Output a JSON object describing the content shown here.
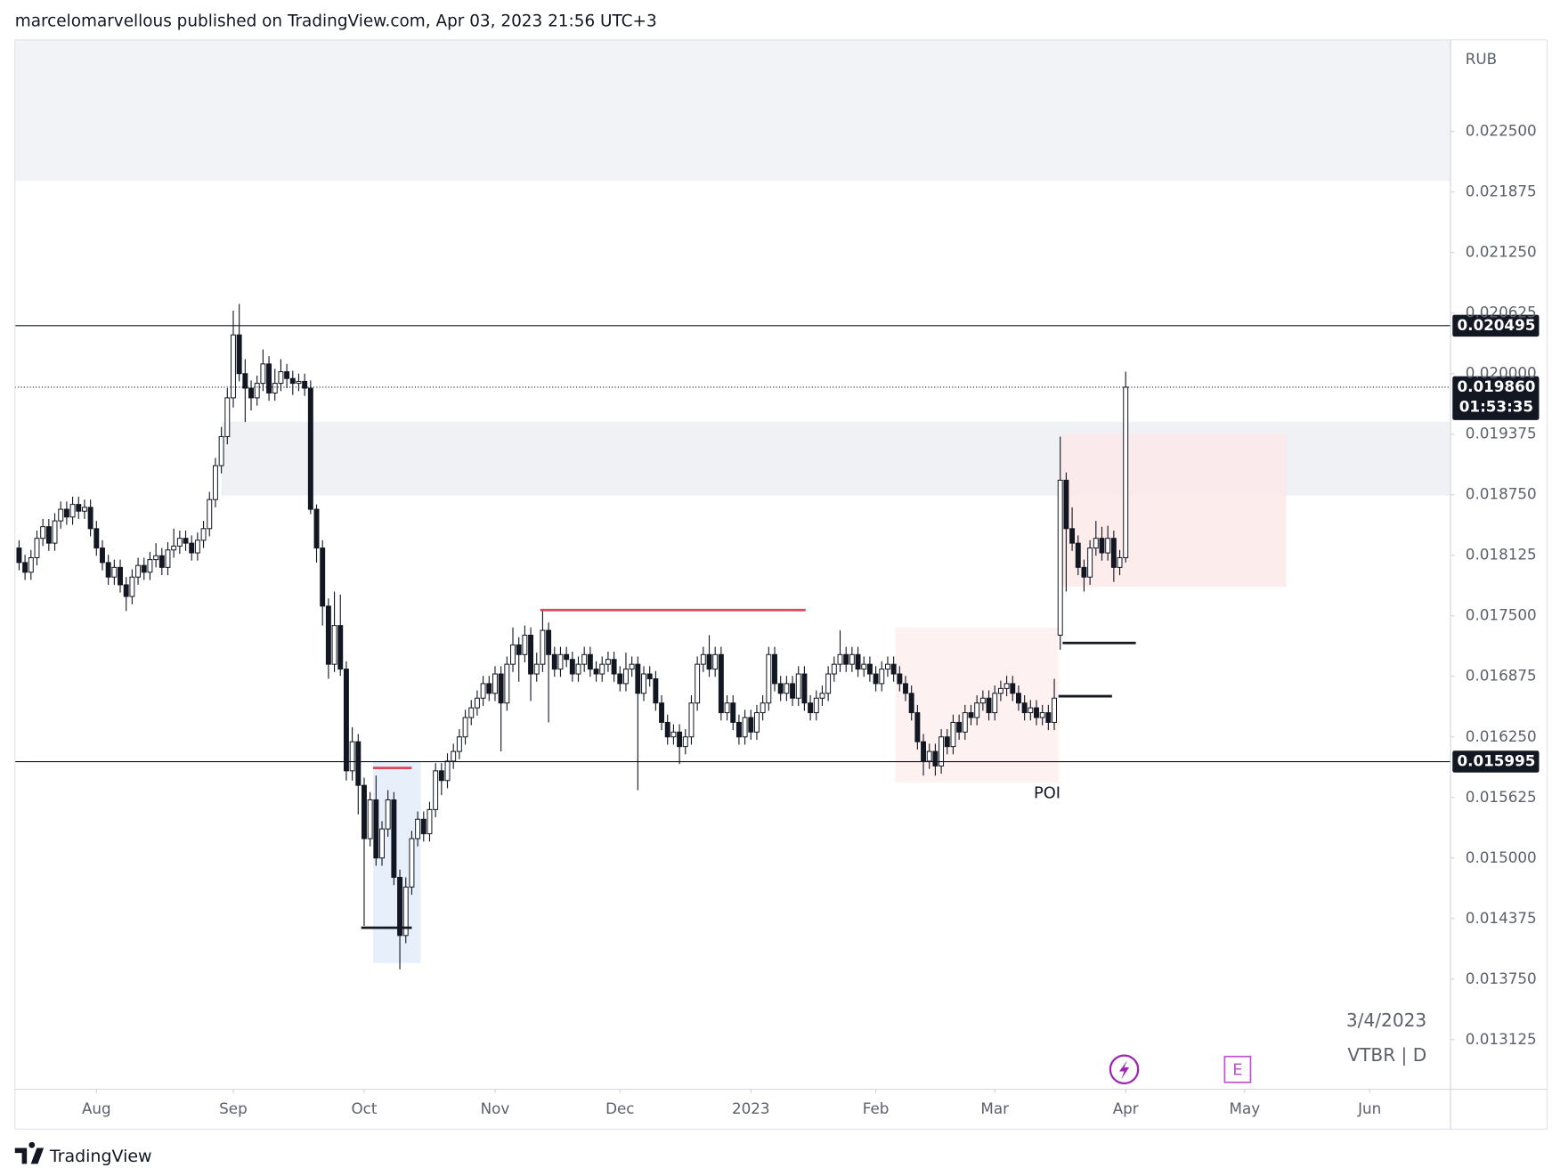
{
  "header": "marcelomarvellous published on TradingView.com, Apr 03, 2023 21:56 UTC+3",
  "footer": "TradingView",
  "chart_data": {
    "type": "candlestick",
    "currency": "RUB",
    "date_label": "3/4/2023",
    "symbol": "VTBR | D",
    "up_color": "#ffffff",
    "down_color": "#131722",
    "edge_color": "#131722",
    "xlim": [
      -0.7,
      240.6
    ],
    "ylim": [
      0.012612,
      0.023445
    ],
    "xticks": [
      {
        "value": 13,
        "label": "Aug"
      },
      {
        "value": 36,
        "label": "Sep"
      },
      {
        "value": 58,
        "label": "Oct"
      },
      {
        "value": 80,
        "label": "Nov"
      },
      {
        "value": 101,
        "label": "Dec"
      },
      {
        "value": 123,
        "label": "2023"
      },
      {
        "value": 144,
        "label": "Feb"
      },
      {
        "value": 164,
        "label": "Mar"
      },
      {
        "value": 186,
        "label": "Apr"
      },
      {
        "value": 206,
        "label": "May"
      },
      {
        "value": 227,
        "label": "Jun"
      }
    ],
    "yticks": [
      {
        "value": 0.013125,
        "label": "0.013125"
      },
      {
        "value": 0.01375,
        "label": "0.013750"
      },
      {
        "value": 0.014375,
        "label": "0.014375"
      },
      {
        "value": 0.015,
        "label": "0.015000"
      },
      {
        "value": 0.015625,
        "label": "0.015625"
      },
      {
        "value": 0.01625,
        "label": "0.016250"
      },
      {
        "value": 0.016875,
        "label": "0.016875"
      },
      {
        "value": 0.0175,
        "label": "0.017500"
      },
      {
        "value": 0.018125,
        "label": "0.018125"
      },
      {
        "value": 0.01875,
        "label": "0.018750"
      },
      {
        "value": 0.019375,
        "label": "0.019375"
      },
      {
        "value": 0.02,
        "label": "0.020000"
      },
      {
        "value": 0.020625,
        "label": "0.020625"
      },
      {
        "value": 0.02125,
        "label": "0.021250"
      },
      {
        "value": 0.021875,
        "label": "0.021875"
      },
      {
        "value": 0.0225,
        "label": "0.022500"
      }
    ],
    "ohlc": [
      [
        0.0182,
        0.01828,
        0.01797,
        0.01805
      ],
      [
        0.01805,
        0.01813,
        0.01787,
        0.01795
      ],
      [
        0.01795,
        0.01818,
        0.01787,
        0.0181
      ],
      [
        0.0181,
        0.01838,
        0.01802,
        0.0183
      ],
      [
        0.0183,
        0.0185,
        0.01822,
        0.01842
      ],
      [
        0.01842,
        0.0185,
        0.01817,
        0.01825
      ],
      [
        0.01825,
        0.01856,
        0.01817,
        0.01848
      ],
      [
        0.01848,
        0.01868,
        0.0184,
        0.0186
      ],
      [
        0.0186,
        0.01868,
        0.01844,
        0.01852
      ],
      [
        0.01852,
        0.01873,
        0.01844,
        0.01865
      ],
      [
        0.01865,
        0.01873,
        0.0185,
        0.01858
      ],
      [
        0.01858,
        0.0187,
        0.0185,
        0.01862
      ],
      [
        0.01862,
        0.0187,
        0.01832,
        0.0184
      ],
      [
        0.0184,
        0.01848,
        0.01812,
        0.0182
      ],
      [
        0.0182,
        0.01828,
        0.01797,
        0.01805
      ],
      [
        0.01805,
        0.01813,
        0.01782,
        0.0179
      ],
      [
        0.0179,
        0.01808,
        0.01782,
        0.018
      ],
      [
        0.018,
        0.01808,
        0.01774,
        0.01782
      ],
      [
        0.01782,
        0.0179,
        0.01755,
        0.0177
      ],
      [
        0.0177,
        0.01798,
        0.01762,
        0.0179
      ],
      [
        0.0179,
        0.0181,
        0.01782,
        0.01802
      ],
      [
        0.01802,
        0.0181,
        0.01787,
        0.01795
      ],
      [
        0.01795,
        0.01816,
        0.01787,
        0.01808
      ],
      [
        0.01808,
        0.01825,
        0.018,
        0.01812
      ],
      [
        0.01812,
        0.0182,
        0.01792,
        0.018
      ],
      [
        0.018,
        0.01826,
        0.01792,
        0.01818
      ],
      [
        0.01818,
        0.0184,
        0.0181,
        0.01822
      ],
      [
        0.01822,
        0.01838,
        0.01814,
        0.0183
      ],
      [
        0.0183,
        0.01838,
        0.01817,
        0.01825
      ],
      [
        0.01825,
        0.01833,
        0.01807,
        0.01815
      ],
      [
        0.01815,
        0.01836,
        0.01807,
        0.01828
      ],
      [
        0.01828,
        0.01848,
        0.0182,
        0.0184
      ],
      [
        0.0184,
        0.01878,
        0.01832,
        0.0187
      ],
      [
        0.0187,
        0.01913,
        0.01862,
        0.01905
      ],
      [
        0.01905,
        0.01945,
        0.01897,
        0.01935
      ],
      [
        0.01935,
        0.01985,
        0.01927,
        0.01975
      ],
      [
        0.01975,
        0.02065,
        0.01965,
        0.0204
      ],
      [
        0.0204,
        0.02072,
        0.01992,
        0.02
      ],
      [
        0.02,
        0.02015,
        0.0195,
        0.01985
      ],
      [
        0.01985,
        0.01993,
        0.01962,
        0.01975
      ],
      [
        0.01975,
        0.01998,
        0.01967,
        0.0199
      ],
      [
        0.0199,
        0.02025,
        0.01982,
        0.0201
      ],
      [
        0.0201,
        0.02018,
        0.01972,
        0.0198
      ],
      [
        0.0198,
        0.02005,
        0.01972,
        0.0199
      ],
      [
        0.0199,
        0.02015,
        0.01982,
        0.02002
      ],
      [
        0.02002,
        0.0201,
        0.01985,
        0.01995
      ],
      [
        0.01995,
        0.02003,
        0.01978,
        0.0199
      ],
      [
        0.0199,
        0.02,
        0.01982,
        0.01992
      ],
      [
        0.01992,
        0.02,
        0.01977,
        0.01985
      ],
      [
        0.01985,
        0.01993,
        0.01855,
        0.0186
      ],
      [
        0.0186,
        0.01865,
        0.01805,
        0.0182
      ],
      [
        0.0182,
        0.01828,
        0.0174,
        0.0176
      ],
      [
        0.0176,
        0.01768,
        0.01685,
        0.017
      ],
      [
        0.017,
        0.01775,
        0.01692,
        0.0174
      ],
      [
        0.0174,
        0.01772,
        0.01688,
        0.01695
      ],
      [
        0.01695,
        0.01703,
        0.0158,
        0.0159
      ],
      [
        0.0159,
        0.01635,
        0.0158,
        0.0162
      ],
      [
        0.0162,
        0.01628,
        0.01545,
        0.01575
      ],
      [
        0.01575,
        0.01583,
        0.0143,
        0.0152
      ],
      [
        0.0152,
        0.01568,
        0.01512,
        0.0156
      ],
      [
        0.0156,
        0.01585,
        0.01492,
        0.015
      ],
      [
        0.015,
        0.01538,
        0.01492,
        0.0153
      ],
      [
        0.0153,
        0.0157,
        0.01522,
        0.0156
      ],
      [
        0.0156,
        0.01568,
        0.01472,
        0.0148
      ],
      [
        0.0148,
        0.01488,
        0.01385,
        0.0142
      ],
      [
        0.0142,
        0.0148,
        0.01412,
        0.0147
      ],
      [
        0.0147,
        0.01528,
        0.01462,
        0.0152
      ],
      [
        0.0152,
        0.01548,
        0.01512,
        0.0154
      ],
      [
        0.0154,
        0.01548,
        0.01517,
        0.01525
      ],
      [
        0.01525,
        0.01558,
        0.01517,
        0.0155
      ],
      [
        0.0155,
        0.01598,
        0.01542,
        0.0159
      ],
      [
        0.0159,
        0.01598,
        0.01565,
        0.0158
      ],
      [
        0.0158,
        0.01608,
        0.01572,
        0.016
      ],
      [
        0.016,
        0.01618,
        0.01592,
        0.0161
      ],
      [
        0.0161,
        0.01633,
        0.01602,
        0.01625
      ],
      [
        0.01625,
        0.01653,
        0.01617,
        0.01645
      ],
      [
        0.01645,
        0.01663,
        0.01637,
        0.01655
      ],
      [
        0.01655,
        0.01673,
        0.01647,
        0.01665
      ],
      [
        0.01665,
        0.01688,
        0.01657,
        0.0168
      ],
      [
        0.0168,
        0.01688,
        0.01662,
        0.0167
      ],
      [
        0.0167,
        0.01698,
        0.01662,
        0.0169
      ],
      [
        0.0169,
        0.01698,
        0.0161,
        0.0166
      ],
      [
        0.0166,
        0.01708,
        0.01652,
        0.017
      ],
      [
        0.017,
        0.01738,
        0.01692,
        0.0172
      ],
      [
        0.0172,
        0.01728,
        0.01682,
        0.0171
      ],
      [
        0.0171,
        0.0174,
        0.01702,
        0.0173
      ],
      [
        0.0173,
        0.01738,
        0.01662,
        0.0169
      ],
      [
        0.0169,
        0.01712,
        0.01682,
        0.017
      ],
      [
        0.017,
        0.01755,
        0.01692,
        0.01735
      ],
      [
        0.01735,
        0.01743,
        0.0164,
        0.0171
      ],
      [
        0.0171,
        0.01718,
        0.01687,
        0.01695
      ],
      [
        0.01695,
        0.01718,
        0.01687,
        0.0171
      ],
      [
        0.0171,
        0.01718,
        0.01697,
        0.01705
      ],
      [
        0.01705,
        0.01713,
        0.01682,
        0.0169
      ],
      [
        0.0169,
        0.01708,
        0.01682,
        0.017
      ],
      [
        0.017,
        0.01718,
        0.01692,
        0.0171
      ],
      [
        0.0171,
        0.01718,
        0.01687,
        0.01695
      ],
      [
        0.01695,
        0.01703,
        0.01682,
        0.0169
      ],
      [
        0.0169,
        0.01708,
        0.01682,
        0.017
      ],
      [
        0.017,
        0.01713,
        0.01692,
        0.01705
      ],
      [
        0.01705,
        0.01713,
        0.01682,
        0.0169
      ],
      [
        0.0169,
        0.01698,
        0.01672,
        0.0168
      ],
      [
        0.0168,
        0.01712,
        0.01672,
        0.01695
      ],
      [
        0.01695,
        0.01708,
        0.01687,
        0.017
      ],
      [
        0.017,
        0.01708,
        0.0157,
        0.0167
      ],
      [
        0.0167,
        0.01698,
        0.01662,
        0.0169
      ],
      [
        0.0169,
        0.01698,
        0.01677,
        0.01685
      ],
      [
        0.01685,
        0.01693,
        0.01652,
        0.0166
      ],
      [
        0.0166,
        0.01668,
        0.01632,
        0.0164
      ],
      [
        0.0164,
        0.01648,
        0.01617,
        0.01625
      ],
      [
        0.01625,
        0.01638,
        0.01617,
        0.0163
      ],
      [
        0.0163,
        0.01638,
        0.01597,
        0.01615
      ],
      [
        0.01615,
        0.01633,
        0.01607,
        0.01625
      ],
      [
        0.01625,
        0.01668,
        0.01617,
        0.0166
      ],
      [
        0.0166,
        0.01708,
        0.01652,
        0.017
      ],
      [
        0.017,
        0.01718,
        0.01692,
        0.0171
      ],
      [
        0.0171,
        0.0173,
        0.01687,
        0.01695
      ],
      [
        0.01695,
        0.01718,
        0.01687,
        0.0171
      ],
      [
        0.0171,
        0.01718,
        0.01642,
        0.0165
      ],
      [
        0.0165,
        0.01668,
        0.01642,
        0.0166
      ],
      [
        0.0166,
        0.01668,
        0.01632,
        0.0164
      ],
      [
        0.0164,
        0.01648,
        0.01617,
        0.01625
      ],
      [
        0.01625,
        0.01653,
        0.01617,
        0.01645
      ],
      [
        0.01645,
        0.01653,
        0.01622,
        0.0163
      ],
      [
        0.0163,
        0.01658,
        0.01622,
        0.0165
      ],
      [
        0.0165,
        0.01668,
        0.01642,
        0.0166
      ],
      [
        0.0166,
        0.01718,
        0.01652,
        0.0171
      ],
      [
        0.0171,
        0.01718,
        0.01672,
        0.0168
      ],
      [
        0.0168,
        0.01688,
        0.01662,
        0.0167
      ],
      [
        0.0167,
        0.01688,
        0.01662,
        0.0168
      ],
      [
        0.0168,
        0.01688,
        0.01657,
        0.01665
      ],
      [
        0.01665,
        0.01698,
        0.01657,
        0.0169
      ],
      [
        0.0169,
        0.01698,
        0.01652,
        0.0166
      ],
      [
        0.0166,
        0.01668,
        0.01642,
        0.0165
      ],
      [
        0.0165,
        0.01673,
        0.01642,
        0.01665
      ],
      [
        0.01665,
        0.01678,
        0.01657,
        0.0167
      ],
      [
        0.0167,
        0.01698,
        0.01662,
        0.0169
      ],
      [
        0.0169,
        0.01708,
        0.01682,
        0.017
      ],
      [
        0.017,
        0.01735,
        0.01692,
        0.0171
      ],
      [
        0.0171,
        0.01718,
        0.01692,
        0.017
      ],
      [
        0.017,
        0.01718,
        0.01692,
        0.0171
      ],
      [
        0.0171,
        0.01718,
        0.01687,
        0.01695
      ],
      [
        0.01695,
        0.01708,
        0.01687,
        0.017
      ],
      [
        0.017,
        0.01708,
        0.01682,
        0.0169
      ],
      [
        0.0169,
        0.01698,
        0.01672,
        0.0168
      ],
      [
        0.0168,
        0.01703,
        0.01672,
        0.01695
      ],
      [
        0.01695,
        0.01708,
        0.01687,
        0.017
      ],
      [
        0.017,
        0.01708,
        0.01682,
        0.0169
      ],
      [
        0.0169,
        0.01698,
        0.01672,
        0.0168
      ],
      [
        0.0168,
        0.01688,
        0.01662,
        0.0167
      ],
      [
        0.0167,
        0.01678,
        0.01642,
        0.0165
      ],
      [
        0.0165,
        0.01658,
        0.01612,
        0.0162
      ],
      [
        0.0162,
        0.01628,
        0.01585,
        0.016
      ],
      [
        0.016,
        0.01618,
        0.01592,
        0.0161
      ],
      [
        0.0161,
        0.01618,
        0.01585,
        0.01595
      ],
      [
        0.01595,
        0.01633,
        0.01587,
        0.01625
      ],
      [
        0.01625,
        0.01633,
        0.01607,
        0.01615
      ],
      [
        0.01615,
        0.01648,
        0.01607,
        0.0164
      ],
      [
        0.0164,
        0.01648,
        0.01622,
        0.0163
      ],
      [
        0.0163,
        0.01658,
        0.01622,
        0.0165
      ],
      [
        0.0165,
        0.01658,
        0.01637,
        0.01645
      ],
      [
        0.01645,
        0.01668,
        0.01637,
        0.0166
      ],
      [
        0.0166,
        0.01673,
        0.01652,
        0.01665
      ],
      [
        0.01665,
        0.01673,
        0.01642,
        0.0165
      ],
      [
        0.0165,
        0.01678,
        0.01642,
        0.0167
      ],
      [
        0.0167,
        0.01683,
        0.01662,
        0.01675
      ],
      [
        0.01675,
        0.01688,
        0.01667,
        0.0168
      ],
      [
        0.0168,
        0.01688,
        0.01662,
        0.0167
      ],
      [
        0.0167,
        0.01678,
        0.01652,
        0.0166
      ],
      [
        0.0166,
        0.01668,
        0.01642,
        0.0165
      ],
      [
        0.0165,
        0.01663,
        0.01642,
        0.01655
      ],
      [
        0.01655,
        0.01663,
        0.01637,
        0.01645
      ],
      [
        0.01645,
        0.01658,
        0.01637,
        0.0165
      ],
      [
        0.0165,
        0.01658,
        0.01632,
        0.0164
      ],
      [
        0.0164,
        0.01685,
        0.01632,
        0.01665
      ],
      [
        0.0173,
        0.01935,
        0.01715,
        0.0189
      ],
      [
        0.0189,
        0.01898,
        0.01775,
        0.0184
      ],
      [
        0.0184,
        0.01862,
        0.01817,
        0.01825
      ],
      [
        0.01825,
        0.01833,
        0.01792,
        0.018
      ],
      [
        0.018,
        0.01808,
        0.01775,
        0.0179
      ],
      [
        0.0179,
        0.01828,
        0.01782,
        0.0182
      ],
      [
        0.0182,
        0.01848,
        0.01812,
        0.0183
      ],
      [
        0.0183,
        0.01842,
        0.01807,
        0.01815
      ],
      [
        0.01815,
        0.01843,
        0.01807,
        0.0183
      ],
      [
        0.0183,
        0.01838,
        0.01785,
        0.018
      ],
      [
        0.018,
        0.01818,
        0.01792,
        0.0181
      ],
      [
        0.0181,
        0.02002,
        0.01805,
        0.01986
      ]
    ],
    "zones": [
      {
        "x": [
          null,
          null
        ],
        "y": [
          0.02199,
          null
        ],
        "color": "#f0f1f5"
      },
      {
        "x": [
          34,
          null
        ],
        "y": [
          0.01874,
          0.019504
        ],
        "color": "#eceef3"
      },
      {
        "x": [
          147.3,
          174.7
        ],
        "y": [
          0.01578,
          0.01738
        ],
        "color": "#fdeeee"
      },
      {
        "x": [
          175,
          213
        ],
        "y": [
          0.0178,
          0.01938
        ],
        "color": "#fce9e9"
      },
      {
        "x": [
          59.5,
          67.5
        ],
        "y": [
          0.013916,
          0.016
        ],
        "color": "#e3ecf9"
      }
    ],
    "segments": [
      {
        "x": [
          87.6,
          132.2
        ],
        "y": 0.01756,
        "color": "#e0465a"
      },
      {
        "x": [
          59.5,
          66
        ],
        "y": 0.01593,
        "color": "#e0465a"
      },
      {
        "x": [
          57.5,
          66
        ],
        "y": 0.01428,
        "color": "#131722"
      },
      {
        "x": [
          175.4,
          187.7
        ],
        "y": 0.01722,
        "color": "#131722"
      },
      {
        "x": [
          174.7,
          183.7
        ],
        "y": 0.01667,
        "color": "#131722"
      }
    ],
    "levels": [
      {
        "value": 0.020495,
        "label": "0.020495"
      },
      {
        "value": 0.015995,
        "label": "0.015995"
      }
    ],
    "last_price": {
      "value": 0.01986,
      "label": "0.019860"
    },
    "countdown": "01:53:35",
    "poi": {
      "x": 172.8,
      "y": 0.015662,
      "label": "POI"
    },
    "event_icon": "E"
  }
}
